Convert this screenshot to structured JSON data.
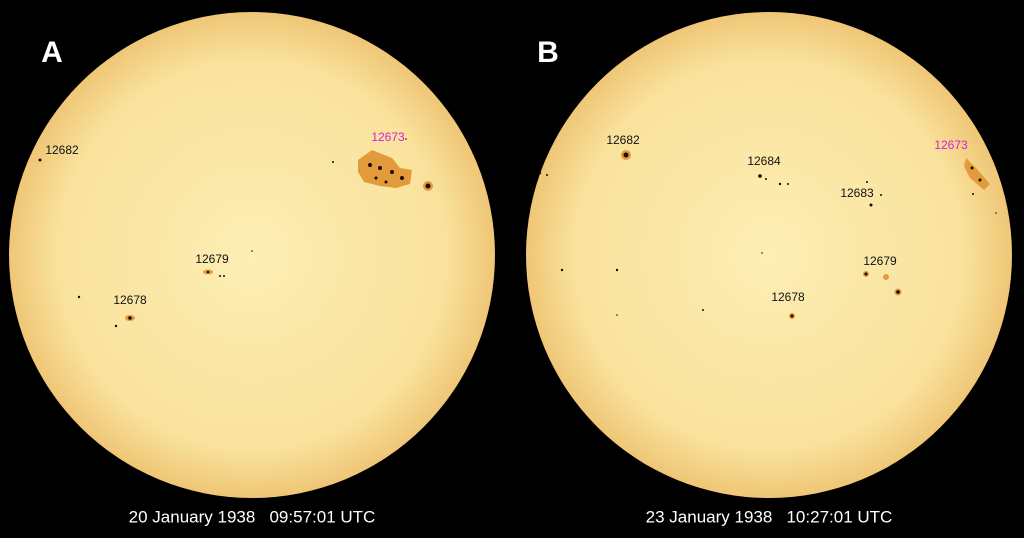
{
  "panels": [
    {
      "label": "A",
      "caption": "20 January 1938   09:57:01 UTC",
      "regions": [
        {
          "text": "12682",
          "color": "#111111"
        },
        {
          "text": "12673",
          "color": "#d61fd6"
        },
        {
          "text": "12679",
          "color": "#111111"
        },
        {
          "text": "12678",
          "color": "#111111"
        }
      ]
    },
    {
      "label": "B",
      "caption": "23 January 1938   10:27:01 UTC",
      "regions": [
        {
          "text": "12682",
          "color": "#111111"
        },
        {
          "text": "12684",
          "color": "#111111"
        },
        {
          "text": "12673",
          "color": "#d61fd6"
        },
        {
          "text": "12683",
          "color": "#111111"
        },
        {
          "text": "12679",
          "color": "#111111"
        },
        {
          "text": "12678",
          "color": "#111111"
        }
      ]
    }
  ]
}
